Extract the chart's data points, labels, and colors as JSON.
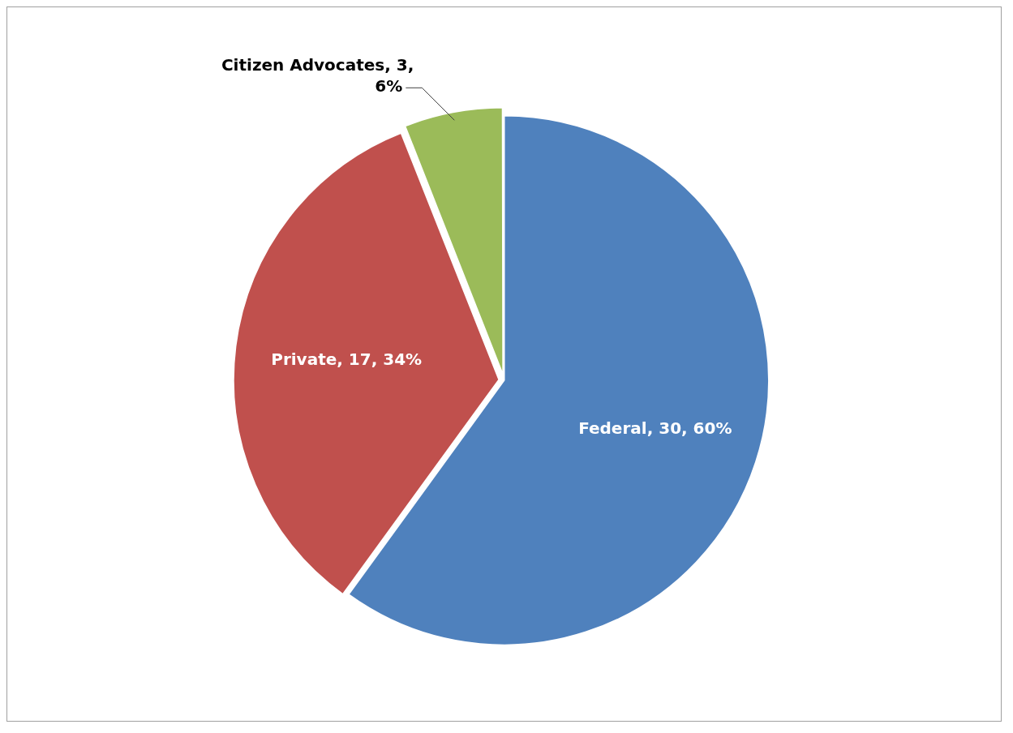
{
  "chart_data": {
    "type": "pie",
    "categories": [
      "Federal",
      "Private",
      "Citizen Advocates"
    ],
    "values": [
      30,
      17,
      3
    ],
    "colors": [
      "#4f81bd",
      "#c0504d",
      "#9bbb59"
    ],
    "value_labels": [
      "30, 60%",
      "17, 34%",
      "3, 6%"
    ],
    "legend": false
  }
}
